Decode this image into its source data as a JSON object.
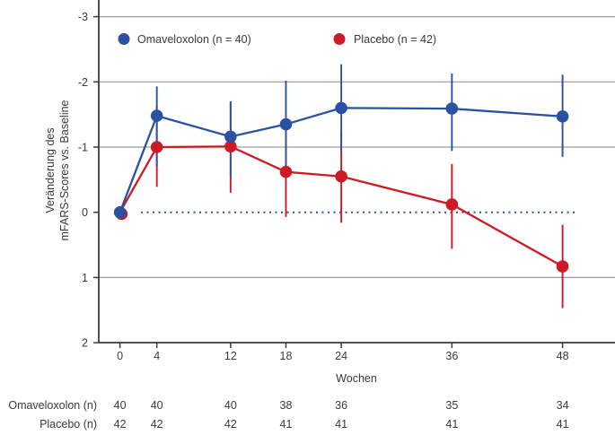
{
  "figure": {
    "y_axis_label_line1": "Veränderung des",
    "y_axis_label_line2": "mFARS-Scores vs. Baseline",
    "x_axis_label": "Wochen"
  },
  "chart_data": {
    "type": "line",
    "x": [
      0,
      4,
      12,
      18,
      24,
      36,
      48
    ],
    "xlabel": "Wochen",
    "ylabel": "Veränderung des mFARS-Scores vs. Baseline",
    "y_ticks": [
      -3,
      -2,
      -1,
      0,
      1,
      2
    ],
    "ylim": [
      -3,
      2
    ],
    "y_axis_inverted": true,
    "grid": true,
    "legend_position": "top-inside",
    "zero_reference_line": {
      "y": 0,
      "style": "dotted",
      "color": "#2b52a2"
    },
    "series": [
      {
        "name": "Omaveloxolon (n = 40)",
        "color": "#2b52a2",
        "values": [
          0,
          -1.48,
          -1.16,
          -1.35,
          -1.6,
          -1.59,
          -1.47
        ],
        "error_low": [
          null,
          -1.93,
          -1.7,
          -2.02,
          -2.27,
          -2.13,
          -2.11
        ],
        "error_high": [
          null,
          -0.71,
          -0.55,
          -0.7,
          -0.93,
          -0.94,
          -0.85
        ]
      },
      {
        "name": "Placebo (n = 42)",
        "color": "#cd1a24",
        "values": [
          0,
          -1.0,
          -1.01,
          -0.62,
          -0.55,
          -0.12,
          0.83
        ],
        "error_low": [
          null,
          -1.62,
          -1.7,
          -1.29,
          -1.26,
          -0.74,
          0.19
        ],
        "error_high": [
          null,
          -0.39,
          -0.3,
          0.07,
          0.16,
          0.56,
          1.47
        ]
      }
    ]
  },
  "table": {
    "rows": [
      {
        "label": "Omaveloxolon (n)",
        "values": [
          "40",
          "40",
          "40",
          "38",
          "36",
          "35",
          "34"
        ]
      },
      {
        "label": "Placebo (n)",
        "values": [
          "42",
          "42",
          "42",
          "41",
          "41",
          "41",
          "41"
        ]
      }
    ]
  }
}
